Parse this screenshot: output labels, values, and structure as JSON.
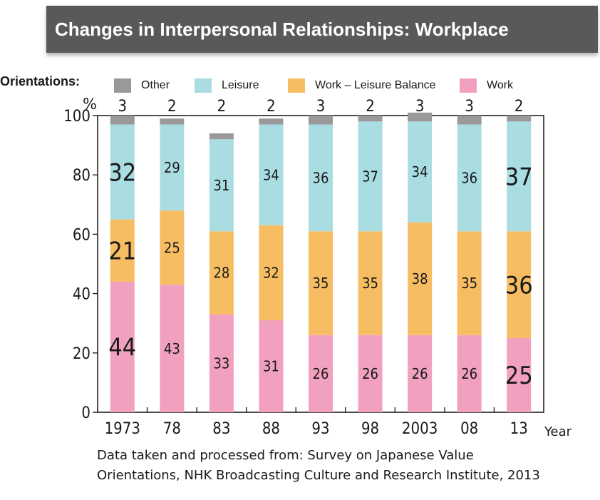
{
  "title": "Changes in Interpersonal Relationships: Workplace",
  "legend_heading": "Orientations:",
  "source_line1": "Data taken and processed from: Survey on Japanese Value",
  "source_line2": "Orientations, NHK Broadcasting Culture and Research Institute, 2013",
  "chart_data": {
    "type": "bar",
    "stacked": true,
    "title": "Changes in Interpersonal Relationships: Workplace",
    "categories": [
      "1973",
      "78",
      "83",
      "88",
      "93",
      "98",
      "2003",
      "08",
      "13"
    ],
    "xlabel": "Year",
    "ylabel": "%",
    "ylim": [
      0,
      100
    ],
    "yticks": [
      0,
      20,
      40,
      60,
      80,
      100
    ],
    "legend_placement": "top",
    "series": [
      {
        "name": "Work",
        "color": "#f1a1bf",
        "values": [
          44,
          43,
          33,
          31,
          26,
          26,
          26,
          26,
          25
        ]
      },
      {
        "name": "Work – Leisure Balance",
        "color": "#f7bd62",
        "values": [
          21,
          25,
          28,
          32,
          35,
          35,
          38,
          35,
          36
        ]
      },
      {
        "name": "Leisure",
        "color": "#a9dde2",
        "values": [
          32,
          29,
          31,
          34,
          36,
          37,
          34,
          36,
          37
        ]
      },
      {
        "name": "Other",
        "color": "#999999",
        "values": [
          3,
          2,
          2,
          2,
          3,
          2,
          3,
          3,
          2
        ]
      }
    ],
    "legend_order": [
      "Other",
      "Leisure",
      "Work – Leisure Balance",
      "Work"
    ],
    "emphasized_label_columns": [
      "1973",
      "13"
    ]
  }
}
